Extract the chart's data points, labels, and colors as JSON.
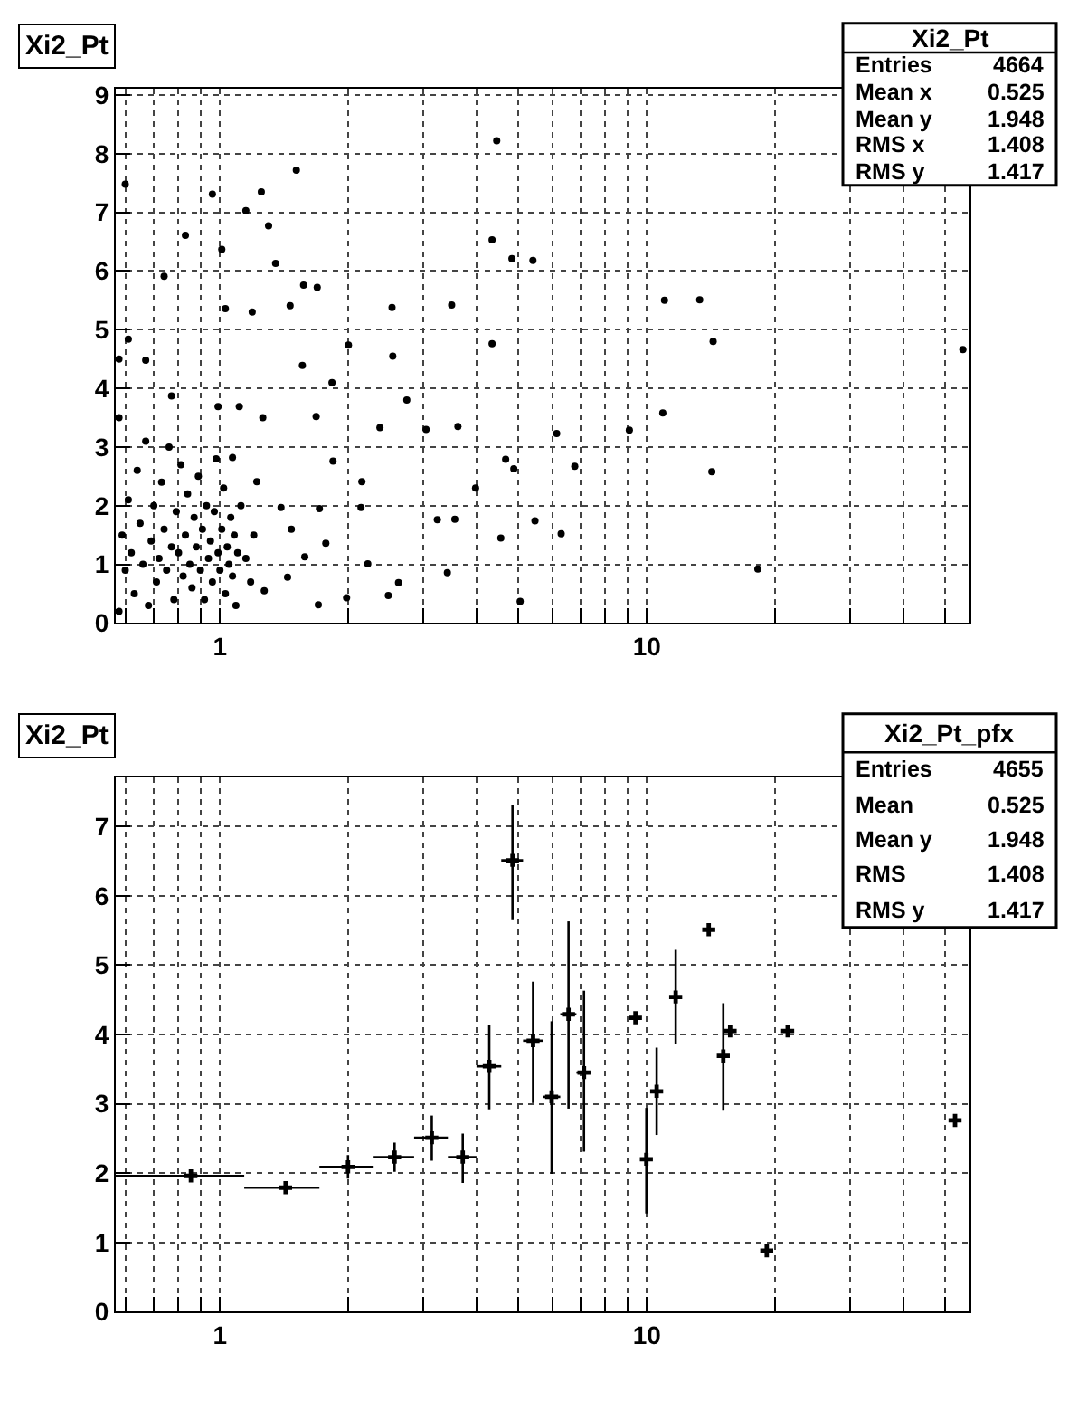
{
  "chart_data": [
    {
      "type": "scatter",
      "title": "Xi2_Pt",
      "annotations": [
        "Xi2_Pt",
        "Entries",
        "4664",
        "Mean x",
        "0.525",
        "Mean y",
        "1.948",
        "RMS x",
        "1.408",
        "RMS y",
        "1.417"
      ],
      "x": [
        4.45,
        1.51,
        1.25,
        1.15,
        1.3,
        4.34,
        4.83,
        5.41,
        1.35,
        1.57,
        1.69,
        11.0,
        13.3,
        3.49,
        2.53,
        14.3,
        4.34,
        2.54,
        55,
        10.9,
        14.2,
        18.2,
        4.67,
        4.88,
        5.47,
        6.3,
        6.78,
        6.15,
        9.1,
        3.61,
        3.04,
        2.74,
        2.37,
        2.15,
        1.84,
        2.0,
        2.48,
        2.62,
        3.23,
        3.55,
        3.41,
        4.55,
        5.05,
        3.97,
        1.98,
        1.7,
        1.46,
        1.19,
        1.03,
        1.01,
        0.83,
        0.74,
        0.6,
        0.96,
        0.67,
        0.61,
        0.77,
        0.99,
        1.11,
        1.26,
        1.56,
        1.83,
        1.68,
        1.07,
        1.22,
        1.39,
        1.47,
        1.58,
        1.44,
        1.27,
        1.77,
        2.14,
        2.22,
        1.71,
        0.59,
        0.6,
        0.61,
        0.62,
        0.63,
        0.64,
        0.65,
        0.66,
        0.67,
        0.68,
        0.69,
        0.7,
        0.71,
        0.72,
        0.73,
        0.74,
        0.75,
        0.76,
        0.77,
        0.78,
        0.79,
        0.8,
        0.81,
        0.82,
        0.83,
        0.84,
        0.85,
        0.86,
        0.87,
        0.88,
        0.89,
        0.9,
        0.91,
        0.92,
        0.93,
        0.94,
        0.95,
        0.96,
        0.97,
        0.98,
        0.99,
        1.0,
        1.01,
        1.02,
        1.03,
        1.04,
        1.05,
        1.06,
        1.07,
        1.08,
        1.09,
        1.1,
        1.12,
        1.15,
        1.18,
        1.2,
        0.58,
        0.58,
        0.58
      ],
      "values": [
        8.22,
        7.72,
        7.35,
        7.03,
        6.77,
        6.53,
        6.21,
        6.18,
        6.13,
        5.76,
        5.72,
        5.5,
        5.51,
        5.42,
        5.38,
        4.8,
        4.76,
        4.55,
        4.66,
        3.58,
        2.58,
        0.92,
        2.79,
        2.63,
        1.74,
        1.52,
        2.67,
        3.23,
        3.29,
        3.35,
        3.3,
        3.8,
        3.33,
        2.41,
        2.76,
        4.74,
        0.47,
        0.69,
        1.76,
        1.77,
        0.86,
        1.45,
        0.37,
        2.3,
        0.43,
        0.31,
        5.41,
        5.3,
        5.36,
        6.37,
        6.61,
        5.91,
        7.48,
        7.31,
        4.48,
        4.84,
        3.87,
        3.69,
        3.69,
        3.5,
        4.39,
        4.1,
        3.52,
        2.82,
        2.41,
        1.97,
        1.6,
        1.13,
        0.78,
        0.55,
        1.36,
        1.97,
        1.01,
        1.95,
        1.5,
        0.9,
        2.1,
        1.2,
        0.5,
        2.6,
        1.7,
        1.0,
        3.1,
        0.3,
        1.4,
        2.0,
        0.7,
        1.1,
        2.4,
        1.6,
        0.9,
        3.0,
        1.3,
        0.4,
        1.9,
        1.2,
        2.7,
        0.8,
        1.5,
        2.2,
        1.0,
        0.6,
        1.8,
        1.3,
        2.5,
        0.9,
        1.6,
        0.4,
        2.0,
        1.1,
        1.4,
        0.7,
        1.9,
        2.8,
        1.2,
        0.9,
        1.6,
        2.3,
        0.5,
        1.3,
        1.0,
        1.8,
        0.8,
        1.5,
        0.3,
        1.2,
        2.0,
        1.1,
        0.7,
        1.5,
        3.5,
        4.5,
        0.2
      ],
      "color": "#000000",
      "marker": "circle",
      "log": "x",
      "grid": true,
      "xlim": [
        0.57,
        57
      ],
      "ylim": [
        0,
        9.1
      ],
      "xticks": [
        {
          "value": 0.6,
          "label": null
        },
        {
          "value": 0.7,
          "label": null
        },
        {
          "value": 0.8,
          "label": null
        },
        {
          "value": 0.9,
          "label": null
        },
        1,
        {
          "value": 2,
          "label": null
        },
        {
          "value": 3,
          "label": null
        },
        {
          "value": 4,
          "label": null
        },
        {
          "value": 5,
          "label": null
        },
        {
          "value": 6,
          "label": null
        },
        {
          "value": 7,
          "label": null
        },
        {
          "value": 8,
          "label": null
        },
        {
          "value": 9,
          "label": null
        },
        10,
        {
          "value": 20,
          "label": null
        },
        {
          "value": 30,
          "label": null
        },
        {
          "value": 40,
          "label": null
        },
        {
          "value": 50,
          "label": null
        }
      ],
      "yticks": [
        0,
        1,
        2,
        3,
        4,
        5,
        6,
        7,
        8,
        9
      ]
    },
    {
      "type": "scatter",
      "title": "Xi2_Pt",
      "annotations": [
        "Xi2_Pt_pfx",
        "Entries",
        "4655",
        "Mean",
        "0.525",
        "Mean y",
        "1.948",
        "RMS",
        "1.408",
        "RMS y",
        "1.417"
      ],
      "x": [
        0.855,
        1.425,
        1.995,
        2.565,
        3.135,
        3.705,
        4.275,
        4.845,
        5.415,
        5.985,
        6.555,
        7.125,
        9.405,
        9.975,
        10.545,
        11.685,
        13.965,
        15.105,
        15.675,
        19.095,
        21.375,
        52.725
      ],
      "values": [
        1.96,
        1.79,
        2.09,
        2.23,
        2.51,
        2.23,
        3.54,
        6.51,
        3.91,
        3.1,
        4.29,
        3.45,
        4.24,
        2.2,
        3.18,
        4.54,
        5.51,
        3.69,
        4.05,
        0.88,
        4.05,
        2.76
      ],
      "errors": [
        0.05,
        0.06,
        0.17,
        0.21,
        [
          2.18,
          2.83
        ],
        [
          1.86,
          2.57
        ],
        [
          2.92,
          4.14
        ],
        [
          5.66,
          7.31
        ],
        [
          3.01,
          4.76
        ],
        [
          1.99,
          4.19
        ],
        [
          2.93,
          5.63
        ],
        [
          2.31,
          4.63
        ],
        null,
        [
          1.42,
          2.94
        ],
        [
          2.55,
          3.81
        ],
        [
          3.86,
          5.22
        ],
        null,
        [
          2.9,
          4.45
        ],
        null,
        null,
        null,
        null
      ],
      "xerrors": [
        0.285,
        0.285,
        0.285,
        0.285,
        0.285,
        0.285,
        0.285,
        0.285,
        0.285,
        0.285,
        0.285,
        0.285,
        0.285,
        0.285,
        0.285,
        0.285,
        0.285,
        0.285,
        0.285,
        0.285,
        0.285,
        0.285
      ],
      "color": "#000000",
      "marker": "cross",
      "log": "x",
      "grid": true,
      "xlim": [
        0.57,
        57
      ],
      "ylim": [
        0,
        7.7
      ],
      "xticks": [
        {
          "value": 0.6,
          "label": null
        },
        {
          "value": 0.7,
          "label": null
        },
        {
          "value": 0.8,
          "label": null
        },
        {
          "value": 0.9,
          "label": null
        },
        1,
        {
          "value": 2,
          "label": null
        },
        {
          "value": 3,
          "label": null
        },
        {
          "value": 4,
          "label": null
        },
        {
          "value": 5,
          "label": null
        },
        {
          "value": 6,
          "label": null
        },
        {
          "value": 7,
          "label": null
        },
        {
          "value": 8,
          "label": null
        },
        {
          "value": 9,
          "label": null
        },
        10,
        {
          "value": 20,
          "label": null
        },
        {
          "value": 30,
          "label": null
        },
        {
          "value": 40,
          "label": null
        },
        {
          "value": 50,
          "label": null
        }
      ],
      "yticks": [
        0,
        1,
        2,
        3,
        4,
        5,
        6,
        7
      ]
    }
  ]
}
